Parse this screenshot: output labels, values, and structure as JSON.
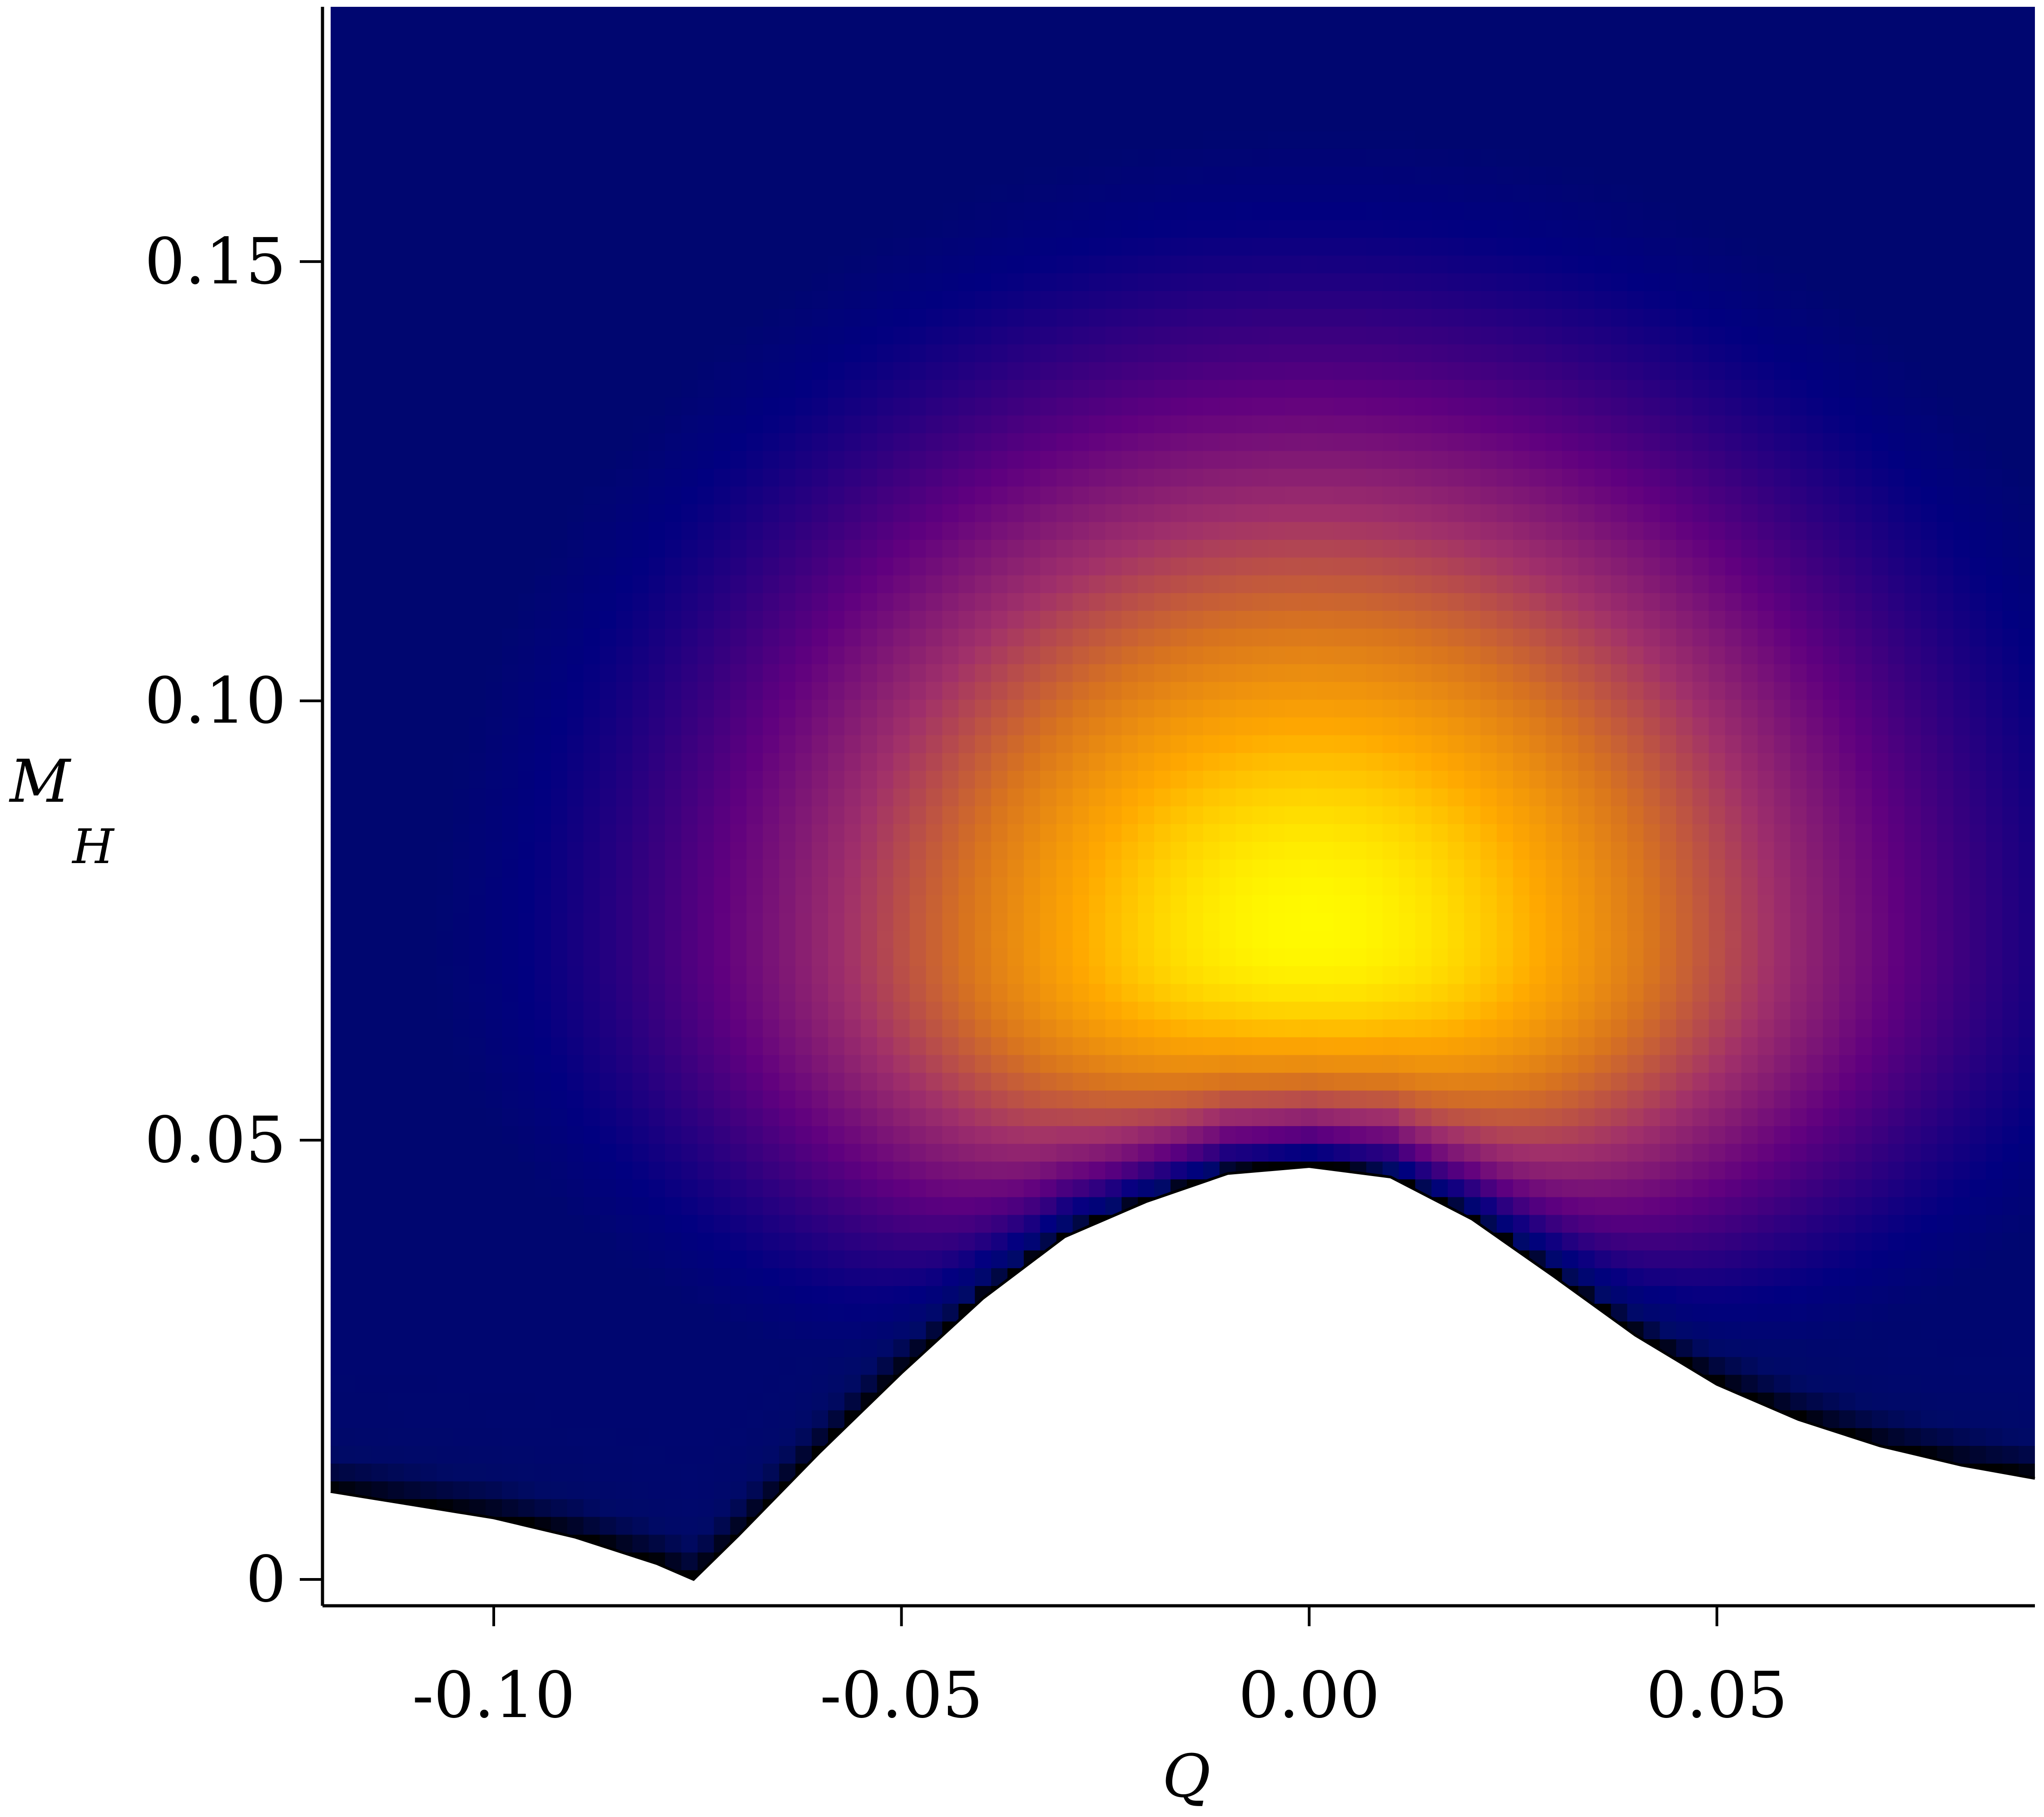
{
  "chart_data": {
    "type": "heatmap",
    "title": "",
    "xlabel": "Q",
    "ylabel": {
      "main": "M",
      "subscript": "H"
    },
    "xlim": [
      -0.121,
      0.089
    ],
    "ylim": [
      -0.003,
      0.179
    ],
    "x_ticks": [
      {
        "value": -0.1,
        "label": "-0.10"
      },
      {
        "value": -0.05,
        "label": "-0.05"
      },
      {
        "value": 0.0,
        "label": "0.00"
      },
      {
        "value": 0.05,
        "label": "0.05"
      }
    ],
    "y_ticks": [
      {
        "value": 0,
        "label": "0"
      },
      {
        "value": 0.05,
        "label": "0.05"
      },
      {
        "value": 0.1,
        "label": "0.10"
      },
      {
        "value": 0.15,
        "label": "0.15"
      }
    ],
    "colormap": "plasma-like (black / navy → purple → orange → yellow)",
    "colormap_stops": [
      "#000000",
      "#000a66",
      "#010080",
      "#60007f",
      "#a0306a",
      "#d8741e",
      "#ffa800",
      "#ffff00"
    ],
    "peak": {
      "x": 0.0,
      "y": 0.072
    },
    "lower_boundary": {
      "description": "region below the curve is empty (white)",
      "points": [
        [
          -0.12,
          0.01
        ],
        [
          -0.11,
          0.0085
        ],
        [
          -0.1,
          0.007
        ],
        [
          -0.09,
          0.0048
        ],
        [
          -0.08,
          0.0018
        ],
        [
          -0.0755,
          0.0
        ],
        [
          -0.07,
          0.005
        ],
        [
          -0.06,
          0.0145
        ],
        [
          -0.05,
          0.0235
        ],
        [
          -0.04,
          0.032
        ],
        [
          -0.03,
          0.039
        ],
        [
          -0.02,
          0.043
        ],
        [
          -0.01,
          0.0462
        ],
        [
          0.0,
          0.047
        ],
        [
          0.01,
          0.0458
        ],
        [
          0.02,
          0.041
        ],
        [
          0.03,
          0.0345
        ],
        [
          0.04,
          0.0278
        ],
        [
          0.05,
          0.0222
        ],
        [
          0.06,
          0.0182
        ],
        [
          0.07,
          0.0152
        ],
        [
          0.08,
          0.013
        ],
        [
          0.089,
          0.0115
        ]
      ]
    },
    "grid": false,
    "legend": "none"
  }
}
